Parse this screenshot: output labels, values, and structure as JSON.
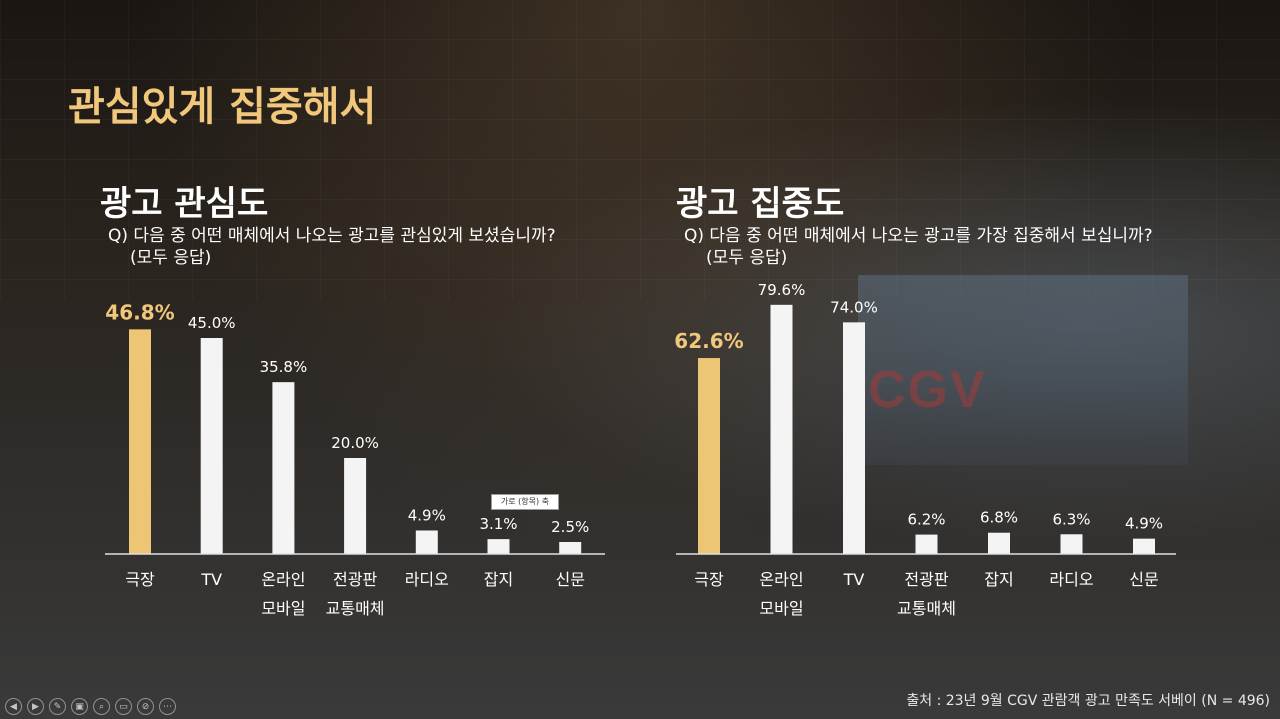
{
  "slide": {
    "title": "관심있게 집중해서",
    "source": "출처 : 23년 9월 CGV 관람객 광고 만족도 서베이 (N = 496)",
    "screen_logo": "CGV"
  },
  "colors": {
    "accent": "#f1c77c",
    "bar_highlight": "#ecc575",
    "bar_default": "#f4f4f4",
    "axis": "#e0e0e0"
  },
  "tooltip": "가로 (항목) 축",
  "controls": [
    {
      "name": "previous-slide-icon",
      "glyph": "◀"
    },
    {
      "name": "next-slide-icon",
      "glyph": "▶"
    },
    {
      "name": "pen-icon",
      "glyph": "✎"
    },
    {
      "name": "slides-icon",
      "glyph": "▣"
    },
    {
      "name": "zoom-icon",
      "glyph": "⌕"
    },
    {
      "name": "subtitles-icon",
      "glyph": "▭"
    },
    {
      "name": "camera-off-icon",
      "glyph": "⊘"
    },
    {
      "name": "more-options-icon",
      "glyph": "⋯"
    }
  ],
  "chart_data": [
    {
      "type": "bar",
      "title": "광고 관심도",
      "question": "Q) 다음 중 어떤 매체에서 나오는 광고를 관심있게 보셨습니까?",
      "note": "(모두 응답)",
      "categories": [
        [
          "극장"
        ],
        [
          "TV"
        ],
        [
          "온라인",
          "모바일"
        ],
        [
          "전광판",
          "교통매체"
        ],
        [
          "라디오"
        ],
        [
          "잡지"
        ],
        [
          "신문"
        ]
      ],
      "values": [
        46.8,
        45.0,
        35.8,
        20.0,
        4.9,
        3.1,
        2.5
      ],
      "labels": [
        "46.8%",
        "45.0%",
        "35.8%",
        "20.0%",
        "4.9%",
        "3.1%",
        "2.5%"
      ],
      "highlight_index": 0,
      "ylim": [
        0,
        60
      ],
      "grid": false,
      "legend": "none"
    },
    {
      "type": "bar",
      "title": "광고 집중도",
      "question": "Q) 다음 중 어떤 매체에서 나오는 광고를 가장 집중해서 보십니까?",
      "note": "(모두 응답)",
      "categories": [
        [
          "극장"
        ],
        [
          "온라인",
          "모바일"
        ],
        [
          "TV"
        ],
        [
          "전광판",
          "교통매체"
        ],
        [
          "잡지"
        ],
        [
          "라디오"
        ],
        [
          "신문"
        ]
      ],
      "values": [
        62.6,
        79.6,
        74.0,
        6.2,
        6.8,
        6.3,
        4.9
      ],
      "labels": [
        "62.6%",
        "79.6%",
        "74.0%",
        "6.2%",
        "6.8%",
        "6.3%",
        "4.9%"
      ],
      "highlight_index": 0,
      "ylim": [
        0,
        92
      ],
      "grid": false,
      "legend": "none"
    }
  ]
}
